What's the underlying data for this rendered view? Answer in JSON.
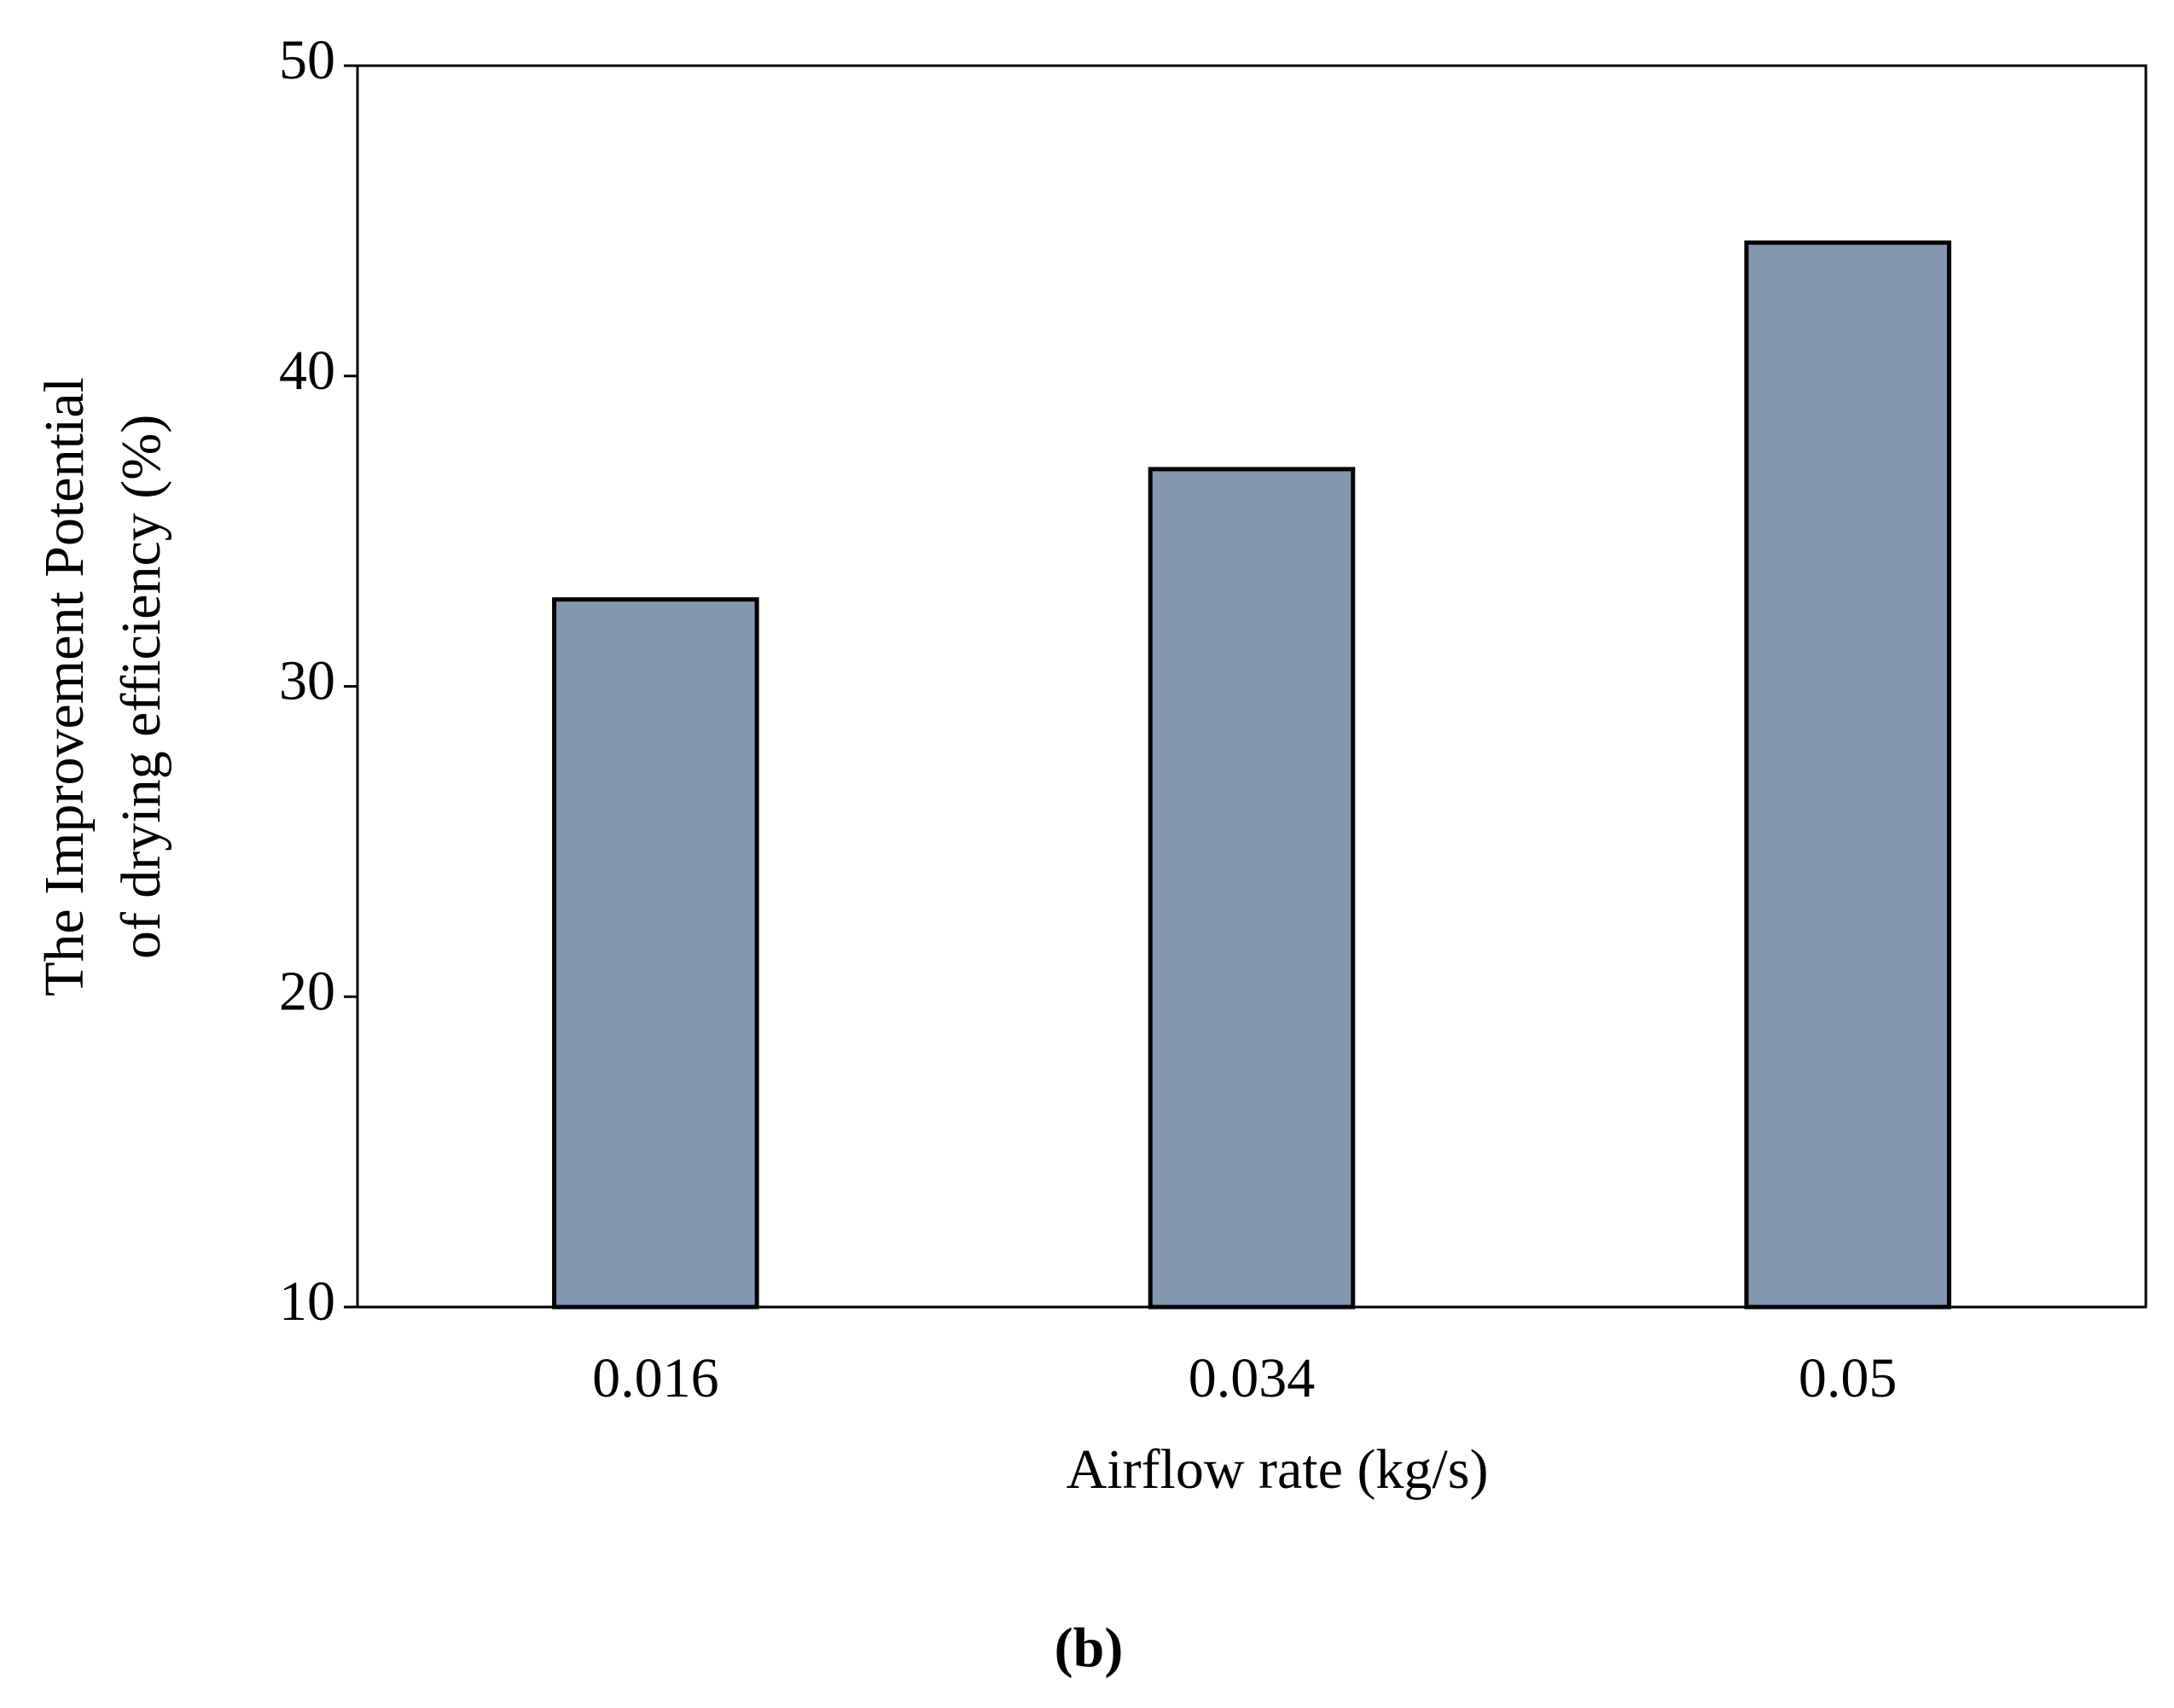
{
  "chart_data": {
    "type": "bar",
    "x_label": "Airflow rate (kg/s)",
    "y_label": [
      "The Improvement  Potential",
      "of drying efficiency (%)"
    ],
    "caption": "(b)",
    "categories": [
      "0.016",
      "0.034",
      "0.05"
    ],
    "values": [
      32.8,
      37.0,
      44.3
    ],
    "color": "#8497b0",
    "ylim": [
      10,
      50
    ],
    "yticks": [
      10,
      20,
      30,
      40,
      50
    ],
    "grid": false
  }
}
